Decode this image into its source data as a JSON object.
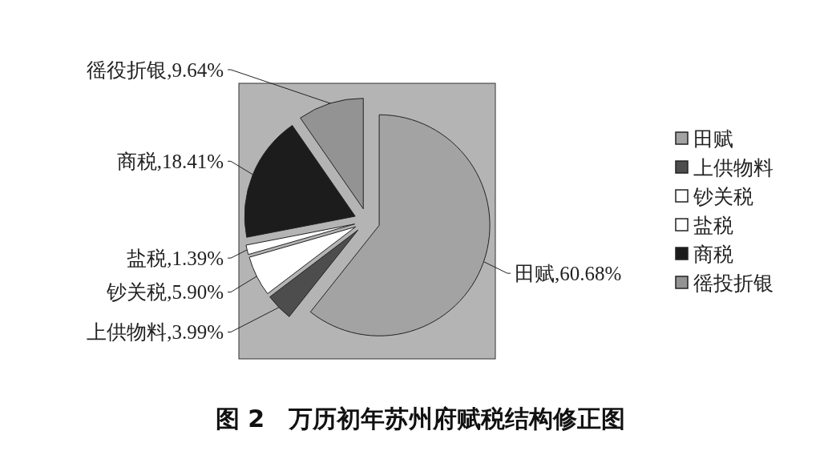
{
  "chart_data": {
    "type": "pie",
    "title": "图 2　万历初年苏州府赋税结构修正图",
    "categories": [
      "田赋",
      "上供物料",
      "钞关税",
      "盐税",
      "商税",
      "徭投折银"
    ],
    "values": [
      60.68,
      3.99,
      5.9,
      1.39,
      18.41,
      9.64
    ],
    "value_labels": [
      "田赋,60.68%",
      "上供物料,3.99%",
      "钞关税,5.90%",
      "盐税,1.39%",
      "商税,18.41%",
      "徭役折银,9.64%"
    ],
    "colors": [
      "#a3a3a3",
      "#4d4d4d",
      "#ffffff",
      "#ffffff",
      "#1c1c1c",
      "#939393"
    ],
    "legend": "right"
  }
}
